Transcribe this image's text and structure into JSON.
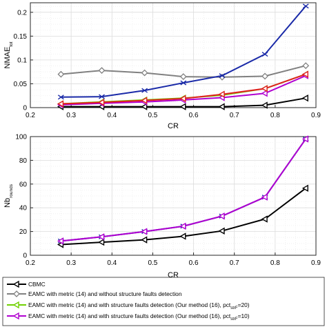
{
  "chart_data": [
    {
      "type": "line",
      "xlabel": "CR",
      "ylabel": {
        "main": "NMAE",
        "sub": "tot"
      },
      "xlim": [
        0.2,
        0.9
      ],
      "ylim": [
        0,
        0.22
      ],
      "xticks": [
        "0.2",
        "0.3",
        "0.4",
        "0.5",
        "0.6",
        "0.7",
        "0.8",
        "0.9"
      ],
      "yticks": [
        "0",
        "0.05",
        "0.1",
        "0.15",
        "0.2"
      ],
      "grid": true,
      "x": [
        0.275,
        0.375,
        0.48,
        0.575,
        0.67,
        0.775,
        0.875
      ],
      "series": [
        {
          "key": "cbmc",
          "color": "#000000",
          "values": [
            0.002,
            0.002,
            0.002,
            0.002,
            0.002,
            0.005,
            0.02
          ]
        },
        {
          "key": "eamc_no",
          "color": "#808080",
          "values": [
            0.07,
            0.078,
            0.073,
            0.065,
            0.064,
            0.066,
            0.088
          ]
        },
        {
          "key": "eamc_20",
          "color": "#6fd000",
          "values": [
            0.008,
            0.012,
            0.016,
            0.02,
            0.026,
            0.04,
            0.07
          ]
        },
        {
          "key": "eamc_10",
          "color": "#b000d0",
          "values": [
            0.006,
            0.009,
            0.012,
            0.016,
            0.021,
            0.03,
            0.067
          ]
        },
        {
          "key": "eamc_red",
          "color": "#e02020",
          "values": [
            0.008,
            0.011,
            0.015,
            0.019,
            0.028,
            0.04,
            0.07
          ]
        },
        {
          "key": "eamc_blue",
          "color": "#1a2aa8",
          "values": [
            0.022,
            0.023,
            0.036,
            0.052,
            0.067,
            0.112,
            0.213
          ]
        }
      ]
    },
    {
      "type": "line",
      "xlabel": "CR",
      "ylabel": {
        "main": "Nb",
        "sub": "rounds"
      },
      "xlim": [
        0.2,
        0.9
      ],
      "ylim": [
        0,
        100
      ],
      "xticks": [
        "0.2",
        "0.3",
        "0.4",
        "0.5",
        "0.6",
        "0.7",
        "0.8",
        "0.9"
      ],
      "yticks": [
        "0",
        "20",
        "40",
        "60",
        "80",
        "100"
      ],
      "grid": true,
      "x": [
        0.275,
        0.375,
        0.48,
        0.575,
        0.67,
        0.775,
        0.875
      ],
      "series": [
        {
          "key": "cbmc",
          "color": "#000000",
          "values": [
            9,
            11,
            13,
            16,
            20.5,
            30.5,
            56.5
          ]
        },
        {
          "key": "eamc_blue",
          "color": "#1a2aa8",
          "values": [
            12,
            15.5,
            20,
            24.5,
            33,
            49,
            98
          ]
        },
        {
          "key": "eamc_10",
          "color": "#b000d0",
          "values": [
            12,
            15.5,
            20,
            24.5,
            33,
            49,
            98
          ]
        }
      ]
    }
  ],
  "legend": [
    {
      "text": "CBMC",
      "sub": "",
      "tail": "",
      "color": "#000000"
    },
    {
      "text": "EAMC with metric (14) and without structure faults detection",
      "sub": "",
      "tail": "",
      "color": "#808080"
    },
    {
      "text": "EAMC with metric (14) and with structure faults detection (Our method (16), pct",
      "sub": "strF",
      "tail": "=20)",
      "color": "#6fd000"
    },
    {
      "text": "EAMC with metric (14) and with structure faults detection (Our method (16), pct",
      "sub": "strF",
      "tail": "=10)",
      "color": "#b000d0"
    }
  ]
}
